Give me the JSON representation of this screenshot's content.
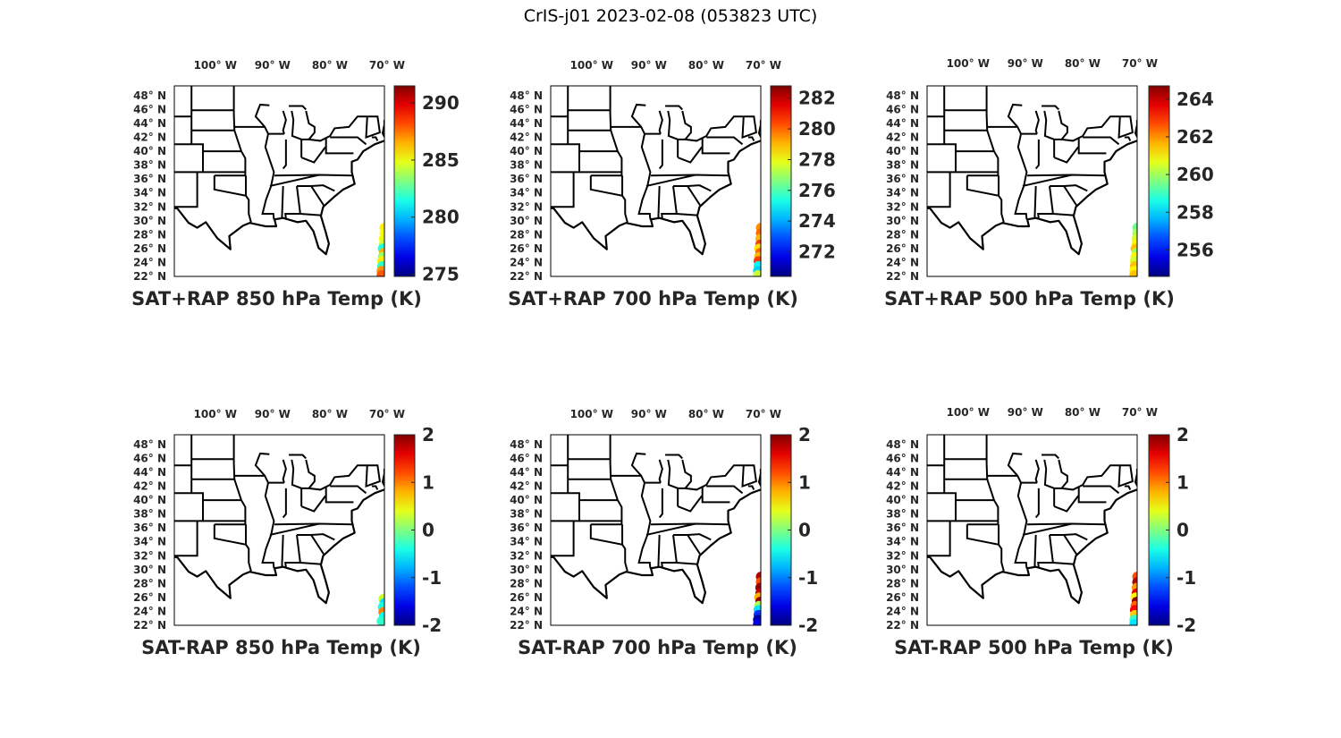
{
  "title": "CrIS-j01 2023-02-08 (053823 UTC)",
  "chart_data": [
    {
      "type": "scatter",
      "title": "SAT+RAP 850 hPa Temp (K)",
      "lon_ticks": [
        "100° W",
        "90° W",
        "80° W",
        "70° W"
      ],
      "lat_ticks": [
        "48° N",
        "46° N",
        "44° N",
        "42° N",
        "40° N",
        "38° N",
        "36° N",
        "34° N",
        "32° N",
        "30° N",
        "28° N",
        "26° N",
        "24° N",
        "22° N"
      ],
      "colorbar": {
        "ticks": [
          "275",
          "280",
          "285",
          "290"
        ],
        "tick_values": [
          275,
          280,
          285,
          290
        ],
        "range": [
          274.8,
          291.5
        ],
        "colormap": "jet"
      },
      "points": [
        {
          "lat": 29.0,
          "lon": -70.3,
          "v": 285.5
        },
        {
          "lat": 28.2,
          "lon": -70.3,
          "v": 285.2
        },
        {
          "lat": 27.4,
          "lon": -70.4,
          "v": 285.0
        },
        {
          "lat": 26.6,
          "lon": -70.4,
          "v": 284.5
        },
        {
          "lat": 26.0,
          "lon": -70.6,
          "v": 281.5
        },
        {
          "lat": 25.4,
          "lon": -70.4,
          "v": 286.5
        },
        {
          "lat": 24.8,
          "lon": -70.6,
          "v": 283.5
        },
        {
          "lat": 24.2,
          "lon": -70.7,
          "v": 285.5
        },
        {
          "lat": 23.5,
          "lon": -70.7,
          "v": 282.0
        },
        {
          "lat": 22.8,
          "lon": -70.8,
          "v": 287.0
        },
        {
          "lat": 22.2,
          "lon": -70.8,
          "v": 288.0
        }
      ]
    },
    {
      "type": "scatter",
      "title": "SAT+RAP 700 hPa Temp (K)",
      "lon_ticks": [
        "100° W",
        "90° W",
        "80° W",
        "70° W"
      ],
      "lat_ticks": [
        "48° N",
        "46° N",
        "44° N",
        "42° N",
        "40° N",
        "38° N",
        "36° N",
        "34° N",
        "32° N",
        "30° N",
        "28° N",
        "26° N",
        "24° N",
        "22° N"
      ],
      "colorbar": {
        "ticks": [
          "272",
          "274",
          "276",
          "278",
          "280",
          "282"
        ],
        "tick_values": [
          272,
          274,
          276,
          278,
          280,
          282
        ],
        "range": [
          270.4,
          282.8
        ],
        "colormap": "jet"
      },
      "points": [
        {
          "lat": 29.0,
          "lon": -70.3,
          "v": 279.5
        },
        {
          "lat": 28.2,
          "lon": -70.3,
          "v": 280.0
        },
        {
          "lat": 27.4,
          "lon": -70.4,
          "v": 279.0
        },
        {
          "lat": 26.6,
          "lon": -70.4,
          "v": 280.5
        },
        {
          "lat": 26.0,
          "lon": -70.6,
          "v": 278.5
        },
        {
          "lat": 25.4,
          "lon": -70.4,
          "v": 280.0
        },
        {
          "lat": 24.8,
          "lon": -70.6,
          "v": 279.0
        },
        {
          "lat": 24.2,
          "lon": -70.7,
          "v": 280.5
        },
        {
          "lat": 23.5,
          "lon": -70.7,
          "v": 275.0
        },
        {
          "lat": 22.8,
          "lon": -70.8,
          "v": 274.5
        },
        {
          "lat": 22.2,
          "lon": -70.8,
          "v": 277.5
        }
      ]
    },
    {
      "type": "scatter",
      "title": "SAT+RAP 500 hPa Temp (K)",
      "lon_ticks": [
        "100° W",
        "90° W",
        "80° W",
        "70° W"
      ],
      "lat_ticks": [
        "48° N",
        "46° N",
        "44° N",
        "42° N",
        "40° N",
        "38° N",
        "36° N",
        "34° N",
        "32° N",
        "30° N",
        "28° N",
        "26° N",
        "24° N",
        "22° N"
      ],
      "colorbar": {
        "ticks": [
          "256",
          "258",
          "260",
          "262",
          "264"
        ],
        "tick_values": [
          256,
          258,
          260,
          262,
          264
        ],
        "range": [
          254.6,
          264.7
        ],
        "colormap": "jet"
      },
      "points": [
        {
          "lat": 29.0,
          "lon": -70.3,
          "v": 259.5
        },
        {
          "lat": 28.2,
          "lon": -70.3,
          "v": 260.0
        },
        {
          "lat": 27.4,
          "lon": -70.4,
          "v": 260.5
        },
        {
          "lat": 26.6,
          "lon": -70.4,
          "v": 261.0
        },
        {
          "lat": 26.0,
          "lon": -70.6,
          "v": 261.5
        },
        {
          "lat": 25.4,
          "lon": -70.4,
          "v": 260.0
        },
        {
          "lat": 24.8,
          "lon": -70.6,
          "v": 261.0
        },
        {
          "lat": 24.2,
          "lon": -70.7,
          "v": 260.5
        },
        {
          "lat": 23.5,
          "lon": -70.7,
          "v": 261.5
        },
        {
          "lat": 22.8,
          "lon": -70.8,
          "v": 261.0
        },
        {
          "lat": 22.2,
          "lon": -70.8,
          "v": 261.5
        }
      ]
    },
    {
      "type": "scatter",
      "title": "SAT-RAP 850 hPa Temp (K)",
      "lon_ticks": [
        "100° W",
        "90° W",
        "80° W",
        "70° W"
      ],
      "lat_ticks": [
        "48° N",
        "46° N",
        "44° N",
        "42° N",
        "40° N",
        "38° N",
        "36° N",
        "34° N",
        "32° N",
        "30° N",
        "28° N",
        "26° N",
        "24° N",
        "22° N"
      ],
      "colorbar": {
        "ticks": [
          "-2",
          "-1",
          "0",
          "1",
          "2"
        ],
        "tick_values": [
          -2,
          -1,
          0,
          1,
          2
        ],
        "range": [
          -2,
          2
        ],
        "colormap": "jet"
      },
      "points": [
        {
          "lat": 25.8,
          "lon": -70.5,
          "v": 0.3
        },
        {
          "lat": 25.2,
          "lon": -70.3,
          "v": -0.6
        },
        {
          "lat": 24.6,
          "lon": -70.6,
          "v": -0.4
        },
        {
          "lat": 23.9,
          "lon": -70.5,
          "v": 1.0
        },
        {
          "lat": 23.2,
          "lon": -70.4,
          "v": -0.5
        },
        {
          "lat": 22.6,
          "lon": -70.8,
          "v": -0.3
        }
      ]
    },
    {
      "type": "scatter",
      "title": "SAT-RAP 700 hPa Temp (K)",
      "lon_ticks": [
        "100° W",
        "90° W",
        "80° W",
        "70° W"
      ],
      "lat_ticks": [
        "48° N",
        "46° N",
        "44° N",
        "42° N",
        "40° N",
        "38° N",
        "36° N",
        "34° N",
        "32° N",
        "30° N",
        "28° N",
        "26° N",
        "24° N",
        "22° N"
      ],
      "colorbar": {
        "ticks": [
          "-2",
          "-1",
          "0",
          "1",
          "2"
        ],
        "tick_values": [
          -2,
          -1,
          0,
          1,
          2
        ],
        "range": [
          -2,
          2
        ],
        "colormap": "jet"
      },
      "points": [
        {
          "lat": 29.0,
          "lon": -70.3,
          "v": 1.8
        },
        {
          "lat": 28.2,
          "lon": -70.3,
          "v": 1.2
        },
        {
          "lat": 27.4,
          "lon": -70.4,
          "v": 1.9
        },
        {
          "lat": 26.6,
          "lon": -70.4,
          "v": 1.7
        },
        {
          "lat": 26.0,
          "lon": -70.6,
          "v": 0.8
        },
        {
          "lat": 25.4,
          "lon": -70.4,
          "v": 1.9
        },
        {
          "lat": 24.8,
          "lon": -70.6,
          "v": 0.2
        },
        {
          "lat": 24.2,
          "lon": -70.7,
          "v": -0.6
        },
        {
          "lat": 23.5,
          "lon": -70.7,
          "v": -1.3
        },
        {
          "lat": 22.8,
          "lon": -70.8,
          "v": -1.8
        },
        {
          "lat": 22.2,
          "lon": -70.8,
          "v": -1.6
        }
      ]
    },
    {
      "type": "scatter",
      "title": "SAT-RAP 500 hPa Temp (K)",
      "lon_ticks": [
        "100° W",
        "90° W",
        "80° W",
        "70° W"
      ],
      "lat_ticks": [
        "48° N",
        "46° N",
        "44° N",
        "42° N",
        "40° N",
        "38° N",
        "36° N",
        "34° N",
        "32° N",
        "30° N",
        "28° N",
        "26° N",
        "24° N",
        "22° N"
      ],
      "colorbar": {
        "ticks": [
          "-2",
          "-1",
          "0",
          "1",
          "2"
        ],
        "tick_values": [
          -2,
          -1,
          0,
          1,
          2
        ],
        "range": [
          -2,
          2
        ],
        "colormap": "jet"
      },
      "points": [
        {
          "lat": 29.0,
          "lon": -70.3,
          "v": 1.2
        },
        {
          "lat": 28.2,
          "lon": -70.3,
          "v": 1.8
        },
        {
          "lat": 27.4,
          "lon": -70.4,
          "v": 0.9
        },
        {
          "lat": 26.6,
          "lon": -70.4,
          "v": 1.6
        },
        {
          "lat": 26.0,
          "lon": -70.6,
          "v": 0.5
        },
        {
          "lat": 25.4,
          "lon": -70.4,
          "v": 1.9
        },
        {
          "lat": 24.8,
          "lon": -70.6,
          "v": 1.1
        },
        {
          "lat": 24.2,
          "lon": -70.7,
          "v": 1.5
        },
        {
          "lat": 23.5,
          "lon": -70.7,
          "v": 0.7
        },
        {
          "lat": 22.8,
          "lon": -70.8,
          "v": -0.3
        },
        {
          "lat": 22.2,
          "lon": -70.8,
          "v": -0.6
        }
      ]
    }
  ]
}
